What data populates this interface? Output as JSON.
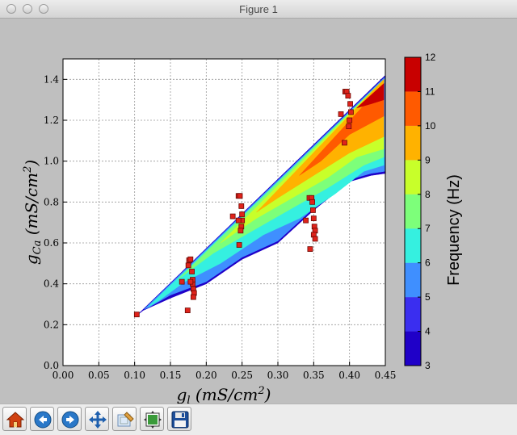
{
  "window": {
    "title": "Figure 1"
  },
  "toolbar": {
    "buttons": [
      {
        "name": "home-button",
        "icon": "home-icon"
      },
      {
        "name": "back-button",
        "icon": "back-arrow-icon"
      },
      {
        "name": "forward-button",
        "icon": "forward-arrow-icon"
      },
      {
        "name": "pan-button",
        "icon": "move-icon"
      },
      {
        "name": "zoom-button",
        "icon": "zoom-rect-icon"
      },
      {
        "name": "subplots-button",
        "icon": "subplots-icon"
      },
      {
        "name": "save-button",
        "icon": "floppy-disk-icon"
      }
    ]
  },
  "chart_data": {
    "type": "contourf+scatter",
    "xlabel": "g_l (mS/cm^2)",
    "ylabel": "g_Ca (mS/cm^2)",
    "xlim": [
      0.0,
      0.45
    ],
    "ylim": [
      0.0,
      1.5
    ],
    "xticks": [
      "0.00",
      "0.05",
      "0.10",
      "0.15",
      "0.20",
      "0.25",
      "0.30",
      "0.35",
      "0.40",
      "0.45"
    ],
    "yticks": [
      "0.0",
      "0.2",
      "0.4",
      "0.6",
      "0.8",
      "1.0",
      "1.2",
      "1.4"
    ],
    "grid": true,
    "colorbar": {
      "label": "Frequency (Hz)",
      "levels": [
        3,
        4,
        5,
        6,
        7,
        8,
        9,
        10,
        11,
        12
      ],
      "colors": [
        "#1f00c8",
        "#3a2ef0",
        "#3f8fff",
        "#35f0e0",
        "#7dff7a",
        "#c8ff2a",
        "#ffb200",
        "#ff5a00",
        "#c80000"
      ]
    },
    "contour_bands": [
      {
        "level_range": [
          3,
          4
        ],
        "poly": [
          [
            0.103,
            0.245
          ],
          [
            0.45,
            1.42
          ],
          [
            0.45,
            0.94
          ],
          [
            0.43,
            0.93
          ],
          [
            0.4,
            0.9
          ],
          [
            0.35,
            0.76
          ],
          [
            0.3,
            0.6
          ],
          [
            0.25,
            0.52
          ],
          [
            0.2,
            0.4
          ],
          [
            0.15,
            0.33
          ],
          [
            0.112,
            0.27
          ]
        ]
      },
      {
        "level_range": [
          5,
          6
        ],
        "poly": [
          [
            0.113,
            0.275
          ],
          [
            0.449,
            1.41
          ],
          [
            0.449,
            0.95
          ],
          [
            0.43,
            0.94
          ],
          [
            0.4,
            0.91
          ],
          [
            0.35,
            0.77
          ],
          [
            0.3,
            0.61
          ],
          [
            0.25,
            0.53
          ],
          [
            0.2,
            0.41
          ],
          [
            0.15,
            0.345
          ],
          [
            0.12,
            0.285
          ]
        ]
      },
      {
        "level_range": [
          6,
          7
        ],
        "poly": [
          [
            0.118,
            0.285
          ],
          [
            0.448,
            1.4
          ],
          [
            0.448,
            0.98
          ],
          [
            0.42,
            0.95
          ],
          [
            0.38,
            0.84
          ],
          [
            0.33,
            0.72
          ],
          [
            0.28,
            0.64
          ],
          [
            0.22,
            0.5
          ],
          [
            0.17,
            0.41
          ],
          [
            0.135,
            0.32
          ]
        ]
      },
      {
        "level_range": [
          7,
          8
        ],
        "poly": [
          [
            0.16,
            0.42
          ],
          [
            0.448,
            1.4
          ],
          [
            0.448,
            1.02
          ],
          [
            0.42,
            0.98
          ],
          [
            0.37,
            0.87
          ],
          [
            0.32,
            0.77
          ],
          [
            0.26,
            0.65
          ],
          [
            0.21,
            0.55
          ]
        ]
      },
      {
        "level_range": [
          8,
          9
        ],
        "poly": [
          [
            0.22,
            0.6
          ],
          [
            0.448,
            1.4
          ],
          [
            0.448,
            1.06
          ],
          [
            0.41,
            1.02
          ],
          [
            0.37,
            0.92
          ],
          [
            0.32,
            0.82
          ],
          [
            0.27,
            0.72
          ]
        ]
      },
      {
        "level_range": [
          9,
          10
        ],
        "poly": [
          [
            0.27,
            0.75
          ],
          [
            0.448,
            1.4
          ],
          [
            0.448,
            1.12
          ],
          [
            0.4,
            1.04
          ],
          [
            0.35,
            0.93
          ],
          [
            0.3,
            0.82
          ]
        ]
      },
      {
        "level_range": [
          10,
          11
        ],
        "poly": [
          [
            0.33,
            0.93
          ],
          [
            0.448,
            1.38
          ],
          [
            0.448,
            1.22
          ],
          [
            0.4,
            1.13
          ],
          [
            0.36,
            1.0
          ]
        ]
      },
      {
        "level_range": [
          11,
          12
        ],
        "poly": [
          [
            0.41,
            1.26
          ],
          [
            0.448,
            1.38
          ],
          [
            0.448,
            1.3
          ],
          [
            0.43,
            1.28
          ]
        ]
      }
    ],
    "series": [
      {
        "marker": "square",
        "x": [
          0.103,
          0.176,
          0.178,
          0.175,
          0.18,
          0.181,
          0.182,
          0.183,
          0.182,
          0.181,
          0.178,
          0.166,
          0.174,
          0.245,
          0.247,
          0.249,
          0.25,
          0.25,
          0.249,
          0.248,
          0.246,
          0.237,
          0.245,
          0.344,
          0.347,
          0.348,
          0.349,
          0.35,
          0.351,
          0.352,
          0.35,
          0.352,
          0.339,
          0.345,
          0.394,
          0.396,
          0.398,
          0.401,
          0.402,
          0.4,
          0.399,
          0.388,
          0.393
        ],
        "y": [
          0.25,
          0.515,
          0.52,
          0.49,
          0.46,
          0.4,
          0.375,
          0.355,
          0.335,
          0.42,
          0.41,
          0.41,
          0.27,
          0.83,
          0.83,
          0.78,
          0.74,
          0.71,
          0.68,
          0.66,
          0.59,
          0.73,
          0.71,
          0.82,
          0.82,
          0.8,
          0.76,
          0.72,
          0.68,
          0.66,
          0.64,
          0.62,
          0.71,
          0.57,
          1.34,
          1.34,
          1.32,
          1.28,
          1.24,
          1.2,
          1.17,
          1.23,
          1.09
        ]
      }
    ]
  }
}
